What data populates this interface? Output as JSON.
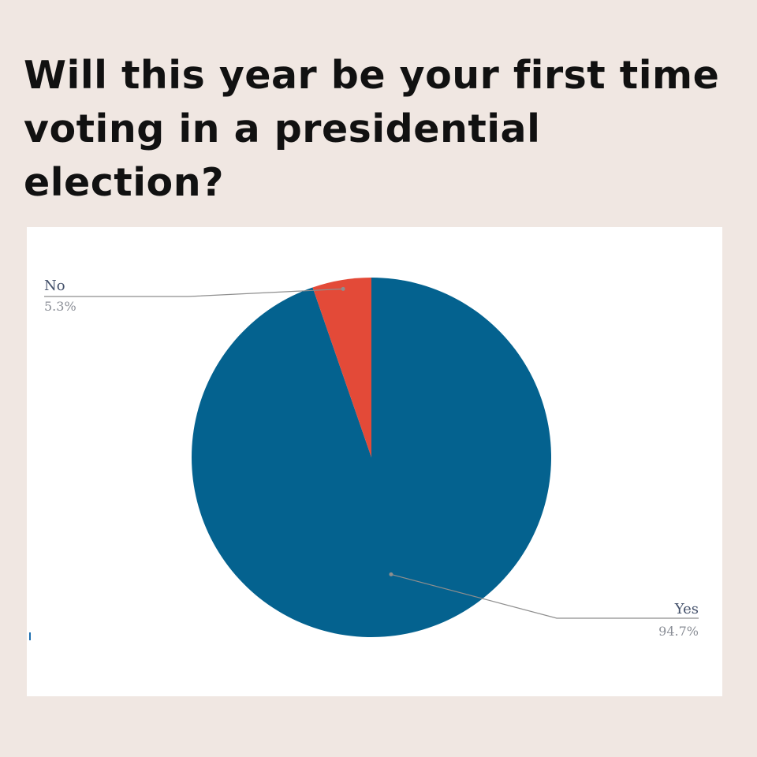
{
  "page": {
    "title": "Will this year be your first time voting in a presidential election?"
  },
  "chart_data": {
    "type": "pie",
    "title": "",
    "slices": [
      {
        "label": "Yes",
        "value": 94.7,
        "value_label": "94.7%",
        "color": "#04628f"
      },
      {
        "label": "No",
        "value": 5.3,
        "value_label": "5.3%",
        "color": "#e34a38"
      }
    ],
    "start_angle_deg": 0,
    "direction": "clockwise",
    "leader_line_color": "#8e8e8e",
    "label_color": "#43506a",
    "value_color": "#8a8e96",
    "legend": "none"
  }
}
